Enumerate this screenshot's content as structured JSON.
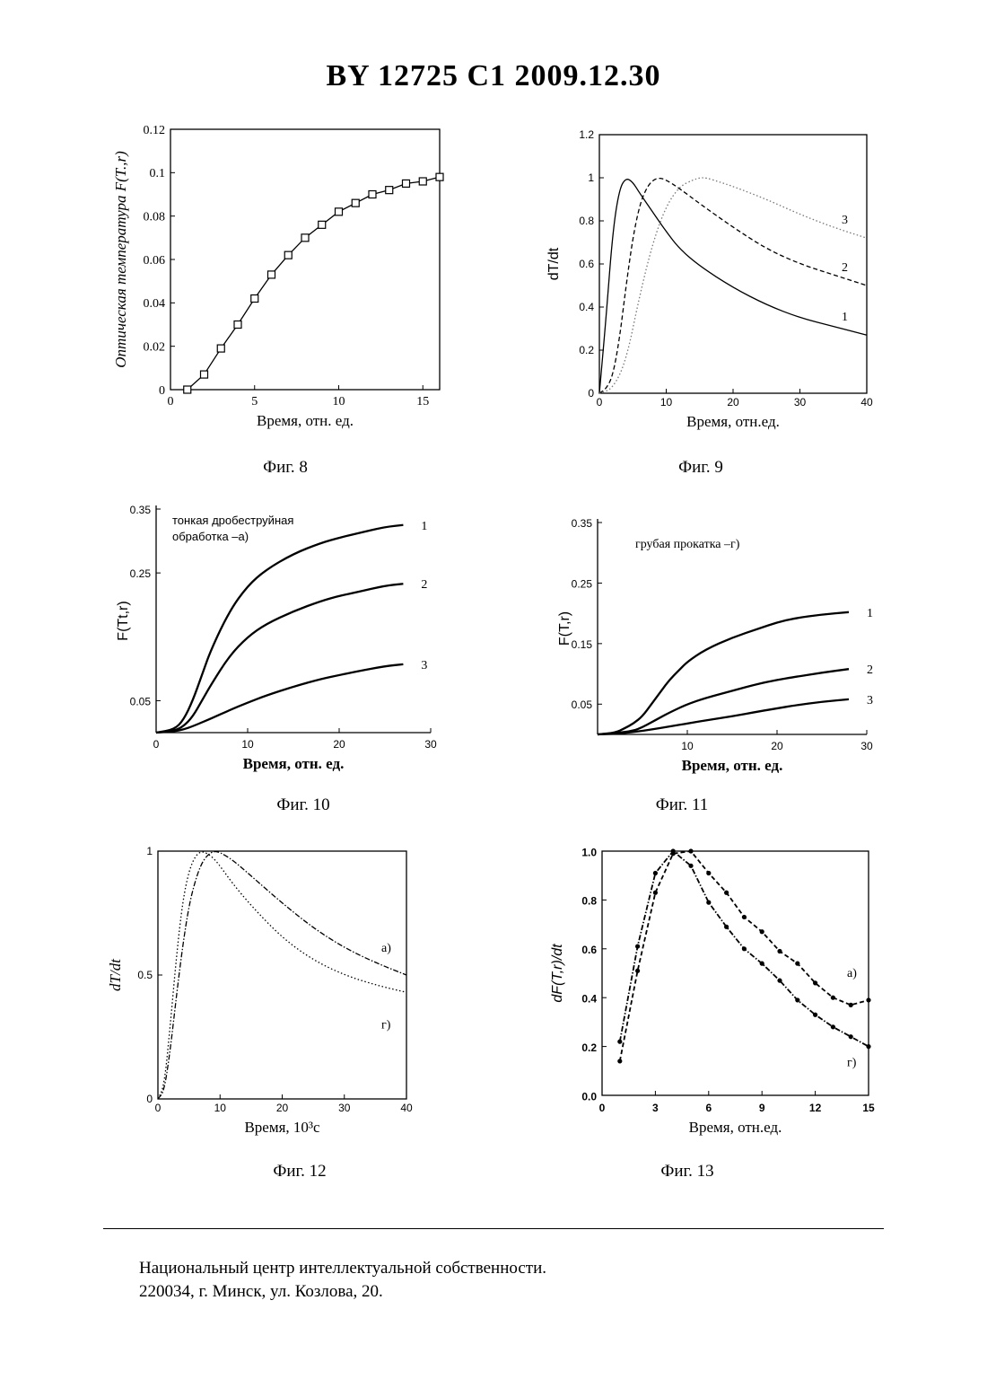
{
  "header": {
    "title": "BY  12725  C1  2009.12.30"
  },
  "footer": {
    "line1": "Национальный центр интеллектуальной собственности.",
    "line2": "220034, г. Минск, ул. Козлова, 20."
  },
  "chart_data": [
    {
      "id": "fig8",
      "type": "line",
      "caption": "Фиг. 8",
      "xlabel": "Время, отн. ед.",
      "ylabel": "Оптическая температура F(T.,r)",
      "xlim": [
        0,
        16
      ],
      "ylim": [
        0,
        0.12
      ],
      "xticks": [
        0,
        5,
        10,
        15
      ],
      "yticks": [
        0,
        0.02,
        0.04,
        0.06,
        0.08,
        0.1,
        0.12
      ],
      "markers": "square",
      "series": [
        {
          "x": [
            1,
            2,
            3,
            4,
            5,
            6,
            7,
            8,
            9,
            10,
            11,
            12,
            13,
            14,
            15,
            16
          ],
          "y": [
            0.0,
            0.007,
            0.019,
            0.03,
            0.042,
            0.053,
            0.062,
            0.07,
            0.076,
            0.082,
            0.086,
            0.09,
            0.092,
            0.095,
            0.096,
            0.098
          ]
        }
      ]
    },
    {
      "id": "fig9",
      "type": "line",
      "caption": "Фиг. 9",
      "xlabel": "Время, отн.ед.",
      "ylabel": "dT/dt",
      "xlim": [
        0,
        40
      ],
      "ylim": [
        0,
        1.2
      ],
      "xticks": [
        0,
        10,
        20,
        30,
        40
      ],
      "yticks": [
        0,
        0.2,
        0.4,
        0.6,
        0.8,
        1,
        1.2
      ],
      "series": [
        {
          "name": "1",
          "style": "solid",
          "x": [
            0,
            1,
            2,
            3,
            4,
            5,
            6,
            8,
            10,
            12,
            15,
            20,
            25,
            30,
            35,
            40
          ],
          "y": [
            0,
            0.35,
            0.75,
            0.95,
            1.0,
            0.98,
            0.93,
            0.84,
            0.75,
            0.67,
            0.59,
            0.49,
            0.41,
            0.35,
            0.31,
            0.27
          ]
        },
        {
          "name": "2",
          "style": "dashed",
          "x": [
            0,
            1,
            2,
            3,
            4,
            5,
            6,
            7,
            8,
            9,
            10,
            12,
            15,
            20,
            25,
            30,
            35,
            40
          ],
          "y": [
            0,
            0.02,
            0.08,
            0.25,
            0.5,
            0.72,
            0.87,
            0.95,
            0.99,
            1.0,
            0.99,
            0.95,
            0.88,
            0.77,
            0.67,
            0.6,
            0.55,
            0.5
          ]
        },
        {
          "name": "3",
          "style": "dotted",
          "x": [
            0,
            2,
            4,
            6,
            8,
            10,
            12,
            14,
            15,
            16,
            18,
            20,
            25,
            30,
            35,
            40
          ],
          "y": [
            0,
            0.02,
            0.15,
            0.45,
            0.7,
            0.87,
            0.96,
            0.99,
            1.0,
            1.0,
            0.98,
            0.96,
            0.9,
            0.83,
            0.77,
            0.72
          ]
        }
      ]
    },
    {
      "id": "fig10",
      "type": "line",
      "caption": "Фиг. 10",
      "xlabel": "Время, отн. ед.",
      "ylabel": "F(Tt,r)",
      "annotation": "тонкая дробеструйная обработка –а)",
      "xlim": [
        0,
        30
      ],
      "ylim": [
        0,
        0.35
      ],
      "xticks": [
        0,
        10,
        20,
        30
      ],
      "yticks": [
        0.05,
        0.25,
        0.35
      ],
      "series": [
        {
          "name": "1",
          "x": [
            0,
            2,
            3,
            4,
            5,
            6,
            8,
            10,
            12,
            15,
            18,
            20,
            22,
            25,
            27
          ],
          "y": [
            0,
            0.005,
            0.02,
            0.05,
            0.09,
            0.13,
            0.19,
            0.23,
            0.255,
            0.28,
            0.297,
            0.305,
            0.312,
            0.322,
            0.325
          ]
        },
        {
          "name": "2",
          "x": [
            0,
            2,
            3,
            4,
            5,
            6,
            8,
            10,
            12,
            15,
            18,
            20,
            22,
            25,
            27
          ],
          "y": [
            0,
            0.003,
            0.01,
            0.025,
            0.05,
            0.075,
            0.12,
            0.15,
            0.17,
            0.19,
            0.206,
            0.214,
            0.22,
            0.23,
            0.233
          ]
        },
        {
          "name": "3",
          "x": [
            0,
            2,
            3,
            4,
            5,
            6,
            8,
            10,
            12,
            15,
            18,
            20,
            22,
            25,
            27
          ],
          "y": [
            0,
            0.002,
            0.005,
            0.01,
            0.016,
            0.022,
            0.035,
            0.047,
            0.058,
            0.072,
            0.084,
            0.09,
            0.096,
            0.104,
            0.107
          ]
        }
      ]
    },
    {
      "id": "fig11",
      "type": "line",
      "caption": "Фиг. 11",
      "xlabel": "Время, отн. ед.",
      "ylabel": "F(T,r)",
      "annotation": "грубая прокатка –г)",
      "xlim": [
        0,
        30
      ],
      "ylim": [
        0,
        0.35
      ],
      "xticks": [
        10,
        20,
        30
      ],
      "yticks": [
        0.05,
        0.15,
        0.25,
        0.35
      ],
      "series": [
        {
          "name": "1",
          "x": [
            0,
            2,
            3,
            4,
            5,
            6,
            7,
            8,
            9,
            10,
            12,
            15,
            18,
            20,
            22,
            25,
            28
          ],
          "y": [
            0,
            0.003,
            0.01,
            0.018,
            0.03,
            0.05,
            0.07,
            0.09,
            0.105,
            0.12,
            0.14,
            0.16,
            0.175,
            0.185,
            0.192,
            0.198,
            0.202
          ]
        },
        {
          "name": "2",
          "x": [
            0,
            2,
            4,
            5,
            6,
            7,
            8,
            10,
            12,
            15,
            18,
            20,
            22,
            25,
            28
          ],
          "y": [
            0,
            0.002,
            0.006,
            0.012,
            0.02,
            0.028,
            0.036,
            0.05,
            0.06,
            0.072,
            0.084,
            0.09,
            0.095,
            0.102,
            0.108
          ]
        },
        {
          "name": "3",
          "x": [
            0,
            2,
            4,
            6,
            8,
            10,
            12,
            15,
            18,
            20,
            22,
            25,
            28
          ],
          "y": [
            0,
            0.001,
            0.004,
            0.008,
            0.013,
            0.018,
            0.023,
            0.03,
            0.038,
            0.043,
            0.048,
            0.054,
            0.058
          ]
        }
      ]
    },
    {
      "id": "fig12",
      "type": "line",
      "caption": "Фиг. 12",
      "xlabel": "Время, 10³с",
      "ylabel": "dT/dt",
      "xlim": [
        0,
        40
      ],
      "ylim": [
        0,
        1
      ],
      "xticks": [
        0,
        10,
        20,
        30,
        40
      ],
      "yticks": [
        0,
        0.5,
        1
      ],
      "series": [
        {
          "name": "а)",
          "style": "dash-dot",
          "x": [
            0,
            1,
            2,
            3,
            4,
            5,
            6,
            7,
            8,
            9,
            10,
            12,
            15,
            20,
            25,
            30,
            35,
            40
          ],
          "y": [
            0,
            0.03,
            0.2,
            0.42,
            0.62,
            0.78,
            0.88,
            0.95,
            0.985,
            1.0,
            0.995,
            0.965,
            0.9,
            0.79,
            0.69,
            0.61,
            0.55,
            0.5
          ]
        },
        {
          "name": "г)",
          "style": "dotted",
          "x": [
            0,
            1,
            2,
            3,
            4,
            5,
            6,
            7,
            8,
            9,
            10,
            12,
            15,
            20,
            25,
            30,
            35,
            40
          ],
          "y": [
            0,
            0.05,
            0.3,
            0.58,
            0.8,
            0.92,
            0.98,
            1.0,
            0.99,
            0.97,
            0.94,
            0.87,
            0.78,
            0.65,
            0.56,
            0.5,
            0.46,
            0.43
          ]
        }
      ]
    },
    {
      "id": "fig13",
      "type": "line",
      "caption": "Фиг. 13",
      "xlabel": "Время, отн.ед.",
      "ylabel": "dF(T,r)/dt",
      "xlim": [
        0,
        15
      ],
      "ylim": [
        0,
        1.0
      ],
      "xticks": [
        0,
        3,
        6,
        9,
        12,
        15
      ],
      "yticks": [
        0.0,
        0.2,
        0.4,
        0.6,
        0.8,
        1.0
      ],
      "ytick_labels": [
        "0.0",
        "0.2",
        "0.4",
        "0.6",
        "0.8",
        "1.0"
      ],
      "markers": "dot",
      "series": [
        {
          "name": "а)",
          "style": "dashed",
          "x": [
            1,
            2,
            3,
            4,
            5,
            6,
            7,
            8,
            9,
            10,
            11,
            12,
            13,
            14,
            15
          ],
          "y": [
            0.14,
            0.51,
            0.83,
            0.99,
            1.0,
            0.91,
            0.83,
            0.73,
            0.67,
            0.59,
            0.54,
            0.46,
            0.4,
            0.37,
            0.39
          ]
        },
        {
          "name": "г)",
          "style": "dash-dot",
          "x": [
            1,
            2,
            3,
            4,
            5,
            6,
            7,
            8,
            9,
            10,
            11,
            12,
            13,
            14,
            15
          ],
          "y": [
            0.22,
            0.61,
            0.91,
            1.0,
            0.94,
            0.79,
            0.69,
            0.6,
            0.54,
            0.47,
            0.39,
            0.33,
            0.28,
            0.24,
            0.2
          ]
        }
      ]
    }
  ]
}
